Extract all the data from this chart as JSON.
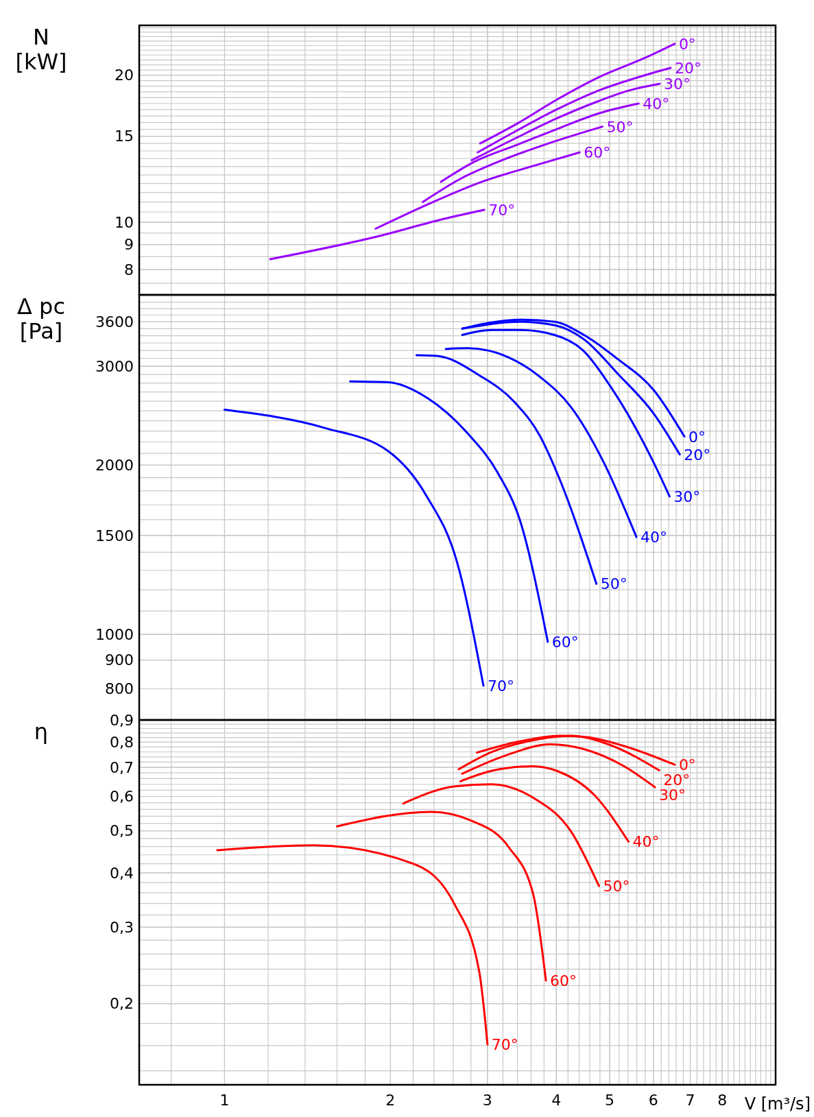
{
  "chart_data": [
    {
      "type": "line",
      "ylabel": "N\n[kW]",
      "log": "xy",
      "grid": true,
      "tick_labels": "y",
      "xlim": [
        0.7,
        10
      ],
      "xticks": [
        1,
        2,
        3,
        4,
        5,
        6,
        7,
        8
      ],
      "ylim": [
        7.1,
        25.3
      ],
      "yticks": [
        8,
        9,
        10,
        15,
        20
      ],
      "series": [
        {
          "name": "0°",
          "color": "#9900ff",
          "x": [
            2.91,
            3.39,
            4.0,
            4.77,
            5.79,
            6.56
          ],
          "values": [
            14.5,
            15.9,
            17.8,
            19.8,
            21.7,
            23.2
          ]
        },
        {
          "name": "20°",
          "color": "#9900ff",
          "x": [
            2.88,
            3.39,
            4.0,
            4.77,
            5.79,
            6.45
          ],
          "values": [
            13.9,
            15.4,
            17.0,
            18.6,
            20.0,
            20.7
          ]
        },
        {
          "name": "30°",
          "color": "#9900ff",
          "x": [
            2.81,
            3.39,
            4.0,
            4.77,
            5.41,
            6.16
          ],
          "values": [
            13.4,
            14.9,
            16.3,
            17.7,
            18.6,
            19.2
          ]
        },
        {
          "name": "40°",
          "color": "#9900ff",
          "x": [
            2.47,
            2.84,
            3.39,
            4.0,
            4.77,
            5.64
          ],
          "values": [
            12.1,
            13.3,
            14.4,
            15.5,
            16.7,
            17.5
          ]
        },
        {
          "name": "50°",
          "color": "#9900ff",
          "x": [
            2.29,
            2.69,
            3.19,
            3.8,
            4.85
          ],
          "values": [
            11.0,
            12.3,
            13.4,
            14.4,
            15.7
          ]
        },
        {
          "name": "60°",
          "color": "#9900ff",
          "x": [
            1.88,
            2.39,
            2.93,
            3.6,
            4.41
          ],
          "values": [
            9.7,
            11.0,
            12.1,
            13.0,
            13.9
          ]
        },
        {
          "name": "70°",
          "color": "#9900ff",
          "x": [
            1.21,
            1.93,
            2.45,
            2.96
          ],
          "values": [
            8.4,
            9.4,
            10.1,
            10.6
          ]
        }
      ]
    },
    {
      "type": "line",
      "ylabel": "Δ pc\n[Pa]",
      "log": "xy",
      "grid": true,
      "tick_labels": "y",
      "xlim": [
        0.7,
        10
      ],
      "xticks": [
        1,
        2,
        3,
        4,
        5,
        6,
        7,
        8
      ],
      "ylim": [
        704,
        4020
      ],
      "yticks": [
        800,
        900,
        1000,
        1500,
        2000,
        3000,
        3600
      ],
      "series": [
        {
          "name": "0°",
          "color": "#0000ff",
          "x": [
            2.7,
            3.05,
            3.44,
            3.97,
            4.49,
            5.17,
            6.01,
            6.83
          ],
          "values": [
            3500,
            3590,
            3630,
            3600,
            3410,
            3090,
            2720,
            2250
          ]
        },
        {
          "name": "20°",
          "color": "#0000ff",
          "x": [
            2.7,
            3.44,
            3.97,
            4.49,
            5.17,
            6.01,
            6.7
          ],
          "values": [
            3500,
            3600,
            3550,
            3350,
            2910,
            2470,
            2090
          ]
        },
        {
          "name": "30°",
          "color": "#0000ff",
          "x": [
            2.7,
            3.05,
            3.44,
            3.97,
            4.49,
            5.03,
            6.01,
            6.42
          ],
          "values": [
            3410,
            3480,
            3480,
            3410,
            3190,
            2750,
            2020,
            1760
          ]
        },
        {
          "name": "40°",
          "color": "#0000ff",
          "x": [
            2.52,
            2.76,
            3.28,
            3.74,
            4.25,
            4.88,
            5.59
          ],
          "values": [
            3220,
            3230,
            3110,
            2870,
            2540,
            2020,
            1490
          ]
        },
        {
          "name": "50°",
          "color": "#0000ff",
          "x": [
            2.23,
            2.43,
            2.9,
            3.36,
            3.74,
            4.01,
            4.73
          ],
          "values": [
            3140,
            3130,
            2890,
            2590,
            2250,
            1940,
            1230
          ]
        },
        {
          "name": "60°",
          "color": "#0000ff",
          "x": [
            1.69,
            1.98,
            2.34,
            2.76,
            3.13,
            3.44,
            3.86
          ],
          "values": [
            2820,
            2810,
            2630,
            2280,
            1940,
            1590,
            970
          ]
        },
        {
          "name": "70°",
          "color": "#0000ff",
          "x": [
            1.0,
            1.52,
            1.98,
            2.32,
            2.65,
            2.95
          ],
          "values": [
            2510,
            2330,
            2120,
            1770,
            1330,
            810
          ]
        }
      ]
    },
    {
      "type": "line",
      "ylabel": "η",
      "xlabel": "V [m³/s]",
      "log": "xy",
      "grid": true,
      "xlim": [
        0.7,
        10
      ],
      "xticks": [
        1,
        2,
        3,
        4,
        5,
        6,
        7,
        8
      ],
      "ylim": [
        0.13,
        0.9
      ],
      "yticks": [
        {
          "value": 0.2,
          "label": "0,2"
        },
        {
          "value": 0.3,
          "label": "0,3"
        },
        {
          "value": 0.4,
          "label": "0,4"
        },
        {
          "value": 0.5,
          "label": "0,5"
        },
        {
          "value": 0.6,
          "label": "0,6"
        },
        {
          "value": 0.7,
          "label": "0,7"
        },
        {
          "value": 0.8,
          "label": "0,8"
        },
        {
          "value": 0.9,
          "label": "0,9"
        }
      ],
      "series": [
        {
          "name": "0°",
          "color": "#ff0000",
          "x": [
            2.87,
            3.44,
            4.06,
            4.54,
            5.31,
            6.56
          ],
          "values": [
            0.757,
            0.804,
            0.828,
            0.822,
            0.784,
            0.71
          ]
        },
        {
          "name": "20°",
          "color": "#ff0000",
          "x": [
            2.66,
            3.05,
            3.63,
            4.25,
            4.97,
            6.15
          ],
          "values": [
            0.693,
            0.759,
            0.808,
            0.828,
            0.791,
            0.689
          ]
        },
        {
          "name": "30°",
          "color": "#ff0000",
          "x": [
            2.7,
            3.24,
            3.9,
            4.49,
            5.31,
            6.04
          ],
          "values": [
            0.677,
            0.746,
            0.791,
            0.771,
            0.704,
            0.63
          ]
        },
        {
          "name": "40°",
          "color": "#ff0000",
          "x": [
            2.68,
            3.05,
            3.63,
            4.01,
            4.68,
            5.41
          ],
          "values": [
            0.65,
            0.687,
            0.704,
            0.687,
            0.606,
            0.472
          ]
        },
        {
          "name": "50°",
          "color": "#ff0000",
          "x": [
            2.11,
            2.62,
            3.05,
            3.63,
            4.25,
            4.78
          ],
          "values": [
            0.578,
            0.633,
            0.64,
            0.596,
            0.499,
            0.373
          ]
        },
        {
          "name": "60°",
          "color": "#ff0000",
          "x": [
            1.6,
            2.37,
            2.81,
            3.28,
            3.63,
            3.83
          ],
          "values": [
            0.512,
            0.553,
            0.527,
            0.458,
            0.358,
            0.226
          ]
        },
        {
          "name": "70°",
          "color": "#ff0000",
          "x": [
            0.97,
            1.45,
            2.2,
            2.62,
            2.9,
            3.0
          ],
          "values": [
            0.451,
            0.463,
            0.42,
            0.337,
            0.236,
            0.161
          ]
        }
      ]
    }
  ]
}
